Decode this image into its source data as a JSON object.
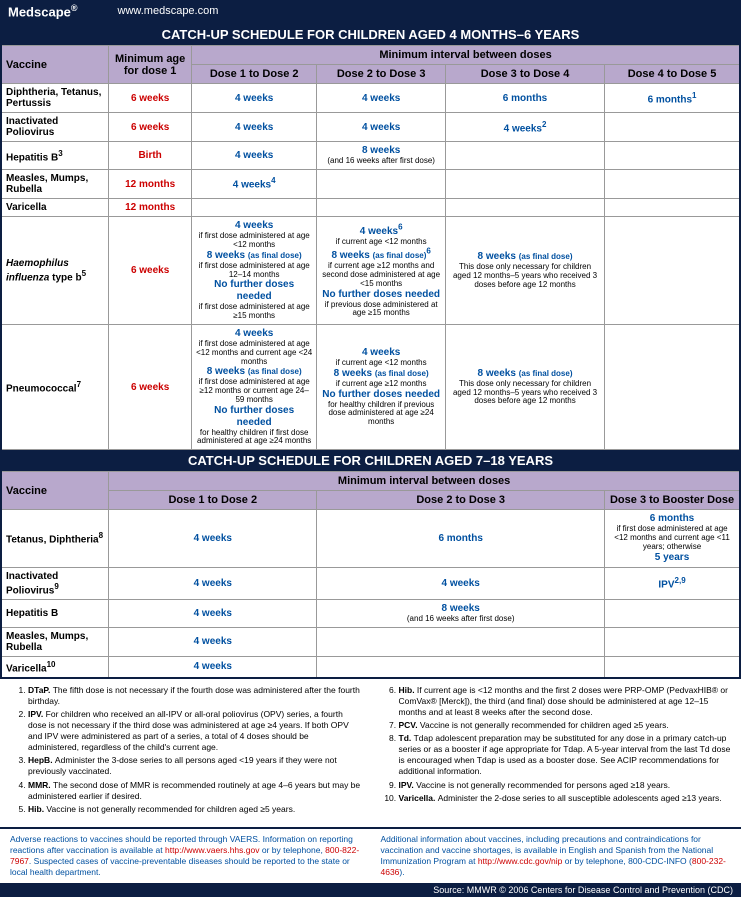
{
  "header": {
    "brand": "Medscape",
    "reg": "®",
    "url": "www.medscape.com"
  },
  "title1": "CATCH-UP SCHEDULE FOR CHILDREN AGED 4 MONTHS–6 YEARS",
  "title2": "CATCH-UP SCHEDULE FOR CHILDREN AGED 7–18 YEARS",
  "h": {
    "vaccine": "Vaccine",
    "minAge": "Minimum age for dose 1",
    "minInt": "Minimum interval between doses",
    "d12": "Dose 1 to Dose 2",
    "d23": "Dose 2 to Dose 3",
    "d34": "Dose 3 to Dose 4",
    "d45": "Dose 4 to Dose 5",
    "d3b": "Dose 3 to Booster Dose"
  },
  "t1": {
    "dtp": {
      "name": "Diphtheria, Tetanus, Pertussis",
      "age": "6 weeks",
      "c12": "4 weeks",
      "c23": "4 weeks",
      "c34": "6 months",
      "c45": "6 months",
      "c45sup": "1"
    },
    "ipv": {
      "name": "Inactivated Poliovirus",
      "age": "6 weeks",
      "c12": "4 weeks",
      "c23": "4 weeks",
      "c34": "4 weeks",
      "c34sup": "2"
    },
    "hepb": {
      "name": "Hepatitis B",
      "sup": "3",
      "age": "Birth",
      "c12": "4 weeks",
      "c23": "8 weeks",
      "c23sub": "(and 16 weeks after first dose)"
    },
    "mmr": {
      "name": "Measles, Mumps, Rubella",
      "age": "12 months",
      "c12": "4 weeks",
      "c12sup": "4"
    },
    "var": {
      "name": "Varicella",
      "age": "12 months"
    },
    "hib": {
      "name": "Haemophilus influenza",
      "nameSuf": " type b",
      "sup": "5",
      "age": "6 weeks",
      "c12a": "4 weeks",
      "c12as": "if first dose administered at age <12 months",
      "c12b": "8 weeks",
      "c12bs": "(as final dose)",
      "c12bn": "if first dose administered at age 12–14 months",
      "c12c": "No further doses needed",
      "c12cs": "if first dose administered at age ≥15 months",
      "c23a": "4 weeks",
      "c23asup": "6",
      "c23as": "if current age <12 months",
      "c23b": "8 weeks",
      "c23bs": "(as final dose)",
      "c23bsup": "6",
      "c23bn": "if current age ≥12 months and second dose administered at age <15 months",
      "c23c": "No further doses needed",
      "c23cs": "if previous dose administered at age ≥15 months",
      "c34a": "8 weeks",
      "c34as": "(as final dose)",
      "c34an": "This dose only necessary for children aged 12 months–5 years who received 3 doses before age 12 months"
    },
    "pcv": {
      "name": "Pneumococcal",
      "sup": "7",
      "age": "6 weeks",
      "c12a": "4 weeks",
      "c12as": "if first dose administered at age <12 months and current age <24 months",
      "c12b": "8 weeks",
      "c12bs": "(as final dose)",
      "c12bn": "if first dose administered at age ≥12 months or current age 24–59 months",
      "c12c": "No further doses needed",
      "c12cs": "for healthy children if first dose administered at age ≥24 months",
      "c23a": "4 weeks",
      "c23as": "if current age <12 months",
      "c23b": "8 weeks",
      "c23bs": "(as final dose)",
      "c23bn": "if current age ≥12 months",
      "c23c": "No further doses needed",
      "c23cs": "for healthy children if previous dose administered at age ≥24 months",
      "c34a": "8 weeks",
      "c34as": "(as final dose)",
      "c34an": "This dose only necessary for children aged 12 months–5 years who received 3 doses before age 12 months"
    }
  },
  "t2": {
    "td": {
      "name": "Tetanus, Diphtheria",
      "sup": "8",
      "c12": "4 weeks",
      "c23": "6 months",
      "c3ba": "6 months",
      "c3bas": "if first dose administered at age <12 months and current age <11 years; otherwise",
      "c3bb": "5 years"
    },
    "ipv": {
      "name": "Inactivated Poliovirus",
      "sup": "9",
      "c12": "4 weeks",
      "c23": "4 weeks",
      "c3b": "IPV",
      "c3bsup": "2,9"
    },
    "hepb": {
      "name": "Hepatitis B",
      "c12": "4 weeks",
      "c23": "8 weeks",
      "c23sub": "(and 16 weeks after first dose)"
    },
    "mmr": {
      "name": "Measles, Mumps, Rubella",
      "c12": "4 weeks"
    },
    "var": {
      "name": "Varicella",
      "sup": "10",
      "c12": "4 weeks"
    }
  },
  "notes": [
    "DTaP. The fifth dose is not necessary if the fourth dose was administered after the fourth birthday.",
    "IPV. For children who received an all-IPV or all-oral poliovirus (OPV) series, a fourth dose is not necessary if the third dose was administered at age ≥4 years. If both OPV and IPV were administered as part of a series, a total of 4 doses should be administered, regardless of the child's current age.",
    "HepB. Administer the 3-dose series to all persons aged <19 years if they were not previously vaccinated.",
    "MMR. The second dose of MMR is recommended routinely at age 4–6 years but may be administered earlier if desired.",
    "Hib. Vaccine is not generally recommended for children aged ≥5 years.",
    "Hib. If current age is <12 months and the first 2 doses were PRP-OMP (PedvaxHIB® or ComVax® [Merck]), the third (and final) dose should be administered at age 12–15 months and at least 8 weeks after the second dose.",
    "PCV. Vaccine is not generally recommended for children aged ≥5 years.",
    "Td. Tdap adolescent preparation may be substituted for any dose in a primary catch-up series or as a booster if age appropriate for Tdap. A 5-year interval from the last Td dose is encouraged when Tdap is used as a booster dose. See ACIP recommendations for additional information.",
    "IPV. Vaccine is not generally recommended for persons aged ≥18 years.",
    "Varicella. Administer the 2-dose series to all susceptible adolescents aged ≥13 years."
  ],
  "btm": {
    "l1": "Adverse reactions to vaccines should be reported through VAERS. Information on reporting reactions after vaccination is available at ",
    "l2": "http://www.vaers.hhs.gov",
    "l3": " or by telephone, ",
    "l4": "800-822-7967",
    "l5": ". Suspected cases of vaccine-preventable diseases should be reported to the state or local health department.",
    "r1": "Additional information about vaccines, including precautions and contraindications for vaccination and vaccine shortages, is available in English and Spanish from the National Immunization Program at ",
    "r2": "http://www.cdc.gov/nip",
    "r3": " or by telephone, 800-CDC-INFO (",
    "r4": "800-232-4636",
    "r5": ")."
  },
  "src": "Source: MMWR © 2006 Centers for Disease Control and Prevention (CDC)"
}
